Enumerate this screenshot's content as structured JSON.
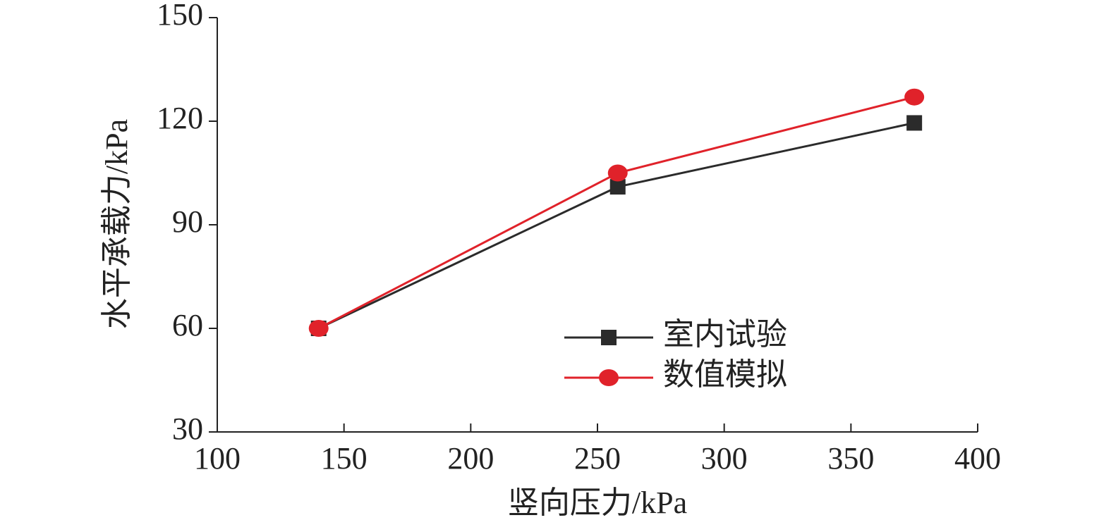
{
  "chart_data": {
    "type": "line",
    "xlabel": "竖向压力/kPa",
    "ylabel": "水平承载力/kPa",
    "xlim": [
      100,
      400
    ],
    "xticks": [
      100,
      150,
      200,
      250,
      300,
      350,
      400
    ],
    "ylim": [
      30,
      150
    ],
    "yticks": [
      30,
      60,
      90,
      120,
      150
    ],
    "x": [
      140,
      258,
      375
    ],
    "series": [
      {
        "name": "室内试验",
        "color": "#2b2b2b",
        "marker": "square",
        "values": [
          60,
          101,
          119.5
        ]
      },
      {
        "name": "数值模拟",
        "color": "#e0222a",
        "marker": "circle",
        "values": [
          60,
          105,
          127
        ]
      }
    ]
  }
}
